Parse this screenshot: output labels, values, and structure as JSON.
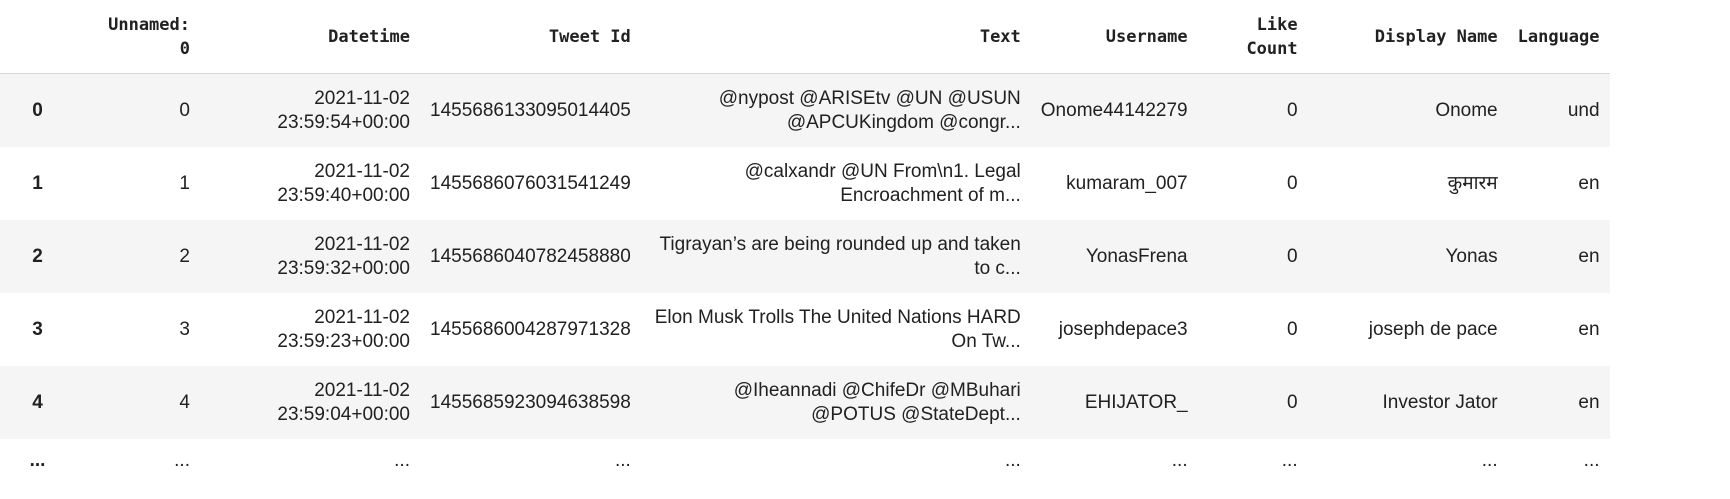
{
  "columns": [
    "",
    "Unnamed:\n0",
    "Datetime",
    "Tweet Id",
    "Text",
    "Username",
    "Like\nCount",
    "Display Name",
    "Language"
  ],
  "rows": [
    {
      "index": "0",
      "unnamed": "0",
      "datetime": "2021-11-02\n23:59:54+00:00",
      "tweet_id": "1455686133095014405",
      "text": "@nypost @ARISEtv @UN @USUN\n@APCUKingdom @congr...",
      "username": "Onome44142279",
      "like_count": "0",
      "display_name": "Onome",
      "language": "und"
    },
    {
      "index": "1",
      "unnamed": "1",
      "datetime": "2021-11-02\n23:59:40+00:00",
      "tweet_id": "1455686076031541249",
      "text": "@calxandr @UN From\\n1. Legal\nEncroachment of m...",
      "username": "kumaram_007",
      "like_count": "0",
      "display_name": "कुमारम",
      "language": "en"
    },
    {
      "index": "2",
      "unnamed": "2",
      "datetime": "2021-11-02\n23:59:32+00:00",
      "tweet_id": "1455686040782458880",
      "text": "Tigrayan’s are being rounded up and taken\nto c...",
      "username": "YonasFrena",
      "like_count": "0",
      "display_name": "Yonas",
      "language": "en"
    },
    {
      "index": "3",
      "unnamed": "3",
      "datetime": "2021-11-02\n23:59:23+00:00",
      "tweet_id": "1455686004287971328",
      "text": "Elon Musk Trolls The United Nations HARD\nOn Tw...",
      "username": "josephdepace3",
      "like_count": "0",
      "display_name": "joseph de pace",
      "language": "en"
    },
    {
      "index": "4",
      "unnamed": "4",
      "datetime": "2021-11-02\n23:59:04+00:00",
      "tweet_id": "1455685923094638598",
      "text": "@Iheannadi @ChifeDr @MBuhari\n@POTUS @StateDept...",
      "username": "EHIJATOR_",
      "like_count": "0",
      "display_name": "Investor Jator",
      "language": "en"
    }
  ],
  "ellipsis": "..."
}
